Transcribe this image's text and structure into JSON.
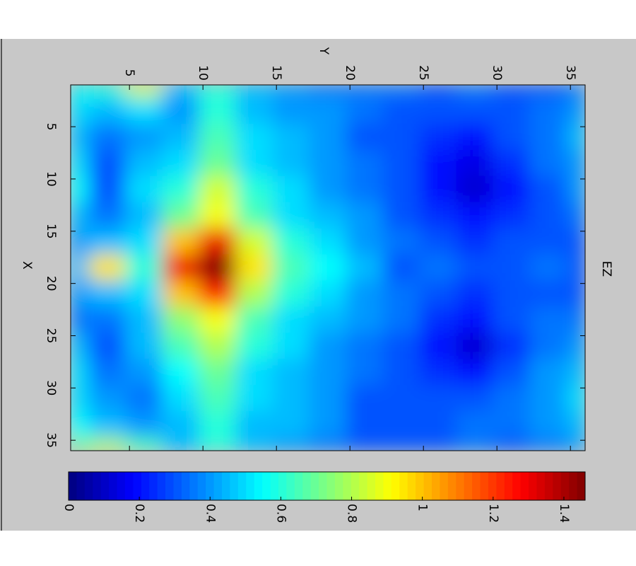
{
  "chart_data": {
    "type": "heatmap",
    "title": "EZ",
    "xlabel": "X",
    "ylabel": "Y",
    "x": [
      1,
      3.5,
      6,
      8.5,
      11,
      13.5,
      16,
      18.5,
      21,
      23.5,
      26,
      28.5,
      31,
      33.5,
      36
    ],
    "y": [
      1,
      3.5,
      6,
      8.5,
      11,
      13.5,
      16,
      18.5,
      21,
      23.5,
      26,
      28.5,
      31,
      33.5,
      36
    ],
    "z": [
      [
        0.55,
        0.6,
        0.85,
        0.45,
        0.6,
        0.45,
        0.4,
        0.35,
        0.35,
        0.35,
        0.3,
        0.35,
        0.3,
        0.3,
        0.35
      ],
      [
        0.5,
        0.45,
        0.5,
        0.4,
        0.6,
        0.45,
        0.4,
        0.4,
        0.35,
        0.3,
        0.3,
        0.3,
        0.3,
        0.35,
        0.4
      ],
      [
        0.45,
        0.35,
        0.4,
        0.45,
        0.65,
        0.5,
        0.45,
        0.4,
        0.3,
        0.3,
        0.25,
        0.2,
        0.3,
        0.35,
        0.45
      ],
      [
        0.5,
        0.3,
        0.45,
        0.5,
        0.7,
        0.5,
        0.45,
        0.4,
        0.35,
        0.3,
        0.2,
        0.15,
        0.25,
        0.35,
        0.4
      ],
      [
        0.55,
        0.3,
        0.5,
        0.6,
        0.85,
        0.6,
        0.5,
        0.4,
        0.35,
        0.3,
        0.2,
        0.12,
        0.2,
        0.3,
        0.4
      ],
      [
        0.45,
        0.35,
        0.45,
        0.7,
        0.9,
        0.65,
        0.5,
        0.45,
        0.4,
        0.3,
        0.25,
        0.2,
        0.25,
        0.3,
        0.35
      ],
      [
        0.4,
        0.45,
        0.5,
        1.0,
        1.3,
        0.85,
        0.6,
        0.5,
        0.4,
        0.35,
        0.3,
        0.25,
        0.3,
        0.3,
        0.3
      ],
      [
        0.45,
        0.95,
        0.6,
        1.3,
        1.46,
        0.95,
        0.65,
        0.55,
        0.45,
        0.3,
        0.35,
        0.3,
        0.3,
        0.35,
        0.3
      ],
      [
        0.4,
        0.45,
        0.5,
        1.0,
        1.25,
        0.8,
        0.6,
        0.5,
        0.4,
        0.35,
        0.3,
        0.25,
        0.3,
        0.3,
        0.3
      ],
      [
        0.35,
        0.35,
        0.45,
        0.75,
        0.9,
        0.65,
        0.5,
        0.45,
        0.4,
        0.35,
        0.25,
        0.2,
        0.3,
        0.35,
        0.35
      ],
      [
        0.45,
        0.3,
        0.45,
        0.65,
        0.8,
        0.6,
        0.5,
        0.4,
        0.35,
        0.3,
        0.2,
        0.12,
        0.25,
        0.35,
        0.4
      ],
      [
        0.5,
        0.35,
        0.4,
        0.55,
        0.7,
        0.5,
        0.45,
        0.4,
        0.35,
        0.3,
        0.25,
        0.2,
        0.3,
        0.4,
        0.45
      ],
      [
        0.5,
        0.4,
        0.35,
        0.5,
        0.65,
        0.5,
        0.45,
        0.4,
        0.3,
        0.3,
        0.3,
        0.3,
        0.35,
        0.4,
        0.5
      ],
      [
        0.55,
        0.45,
        0.4,
        0.45,
        0.6,
        0.45,
        0.45,
        0.4,
        0.3,
        0.3,
        0.3,
        0.35,
        0.35,
        0.4,
        0.45
      ],
      [
        0.7,
        0.8,
        0.65,
        0.45,
        0.6,
        0.45,
        0.4,
        0.35,
        0.3,
        0.3,
        0.3,
        0.35,
        0.3,
        0.35,
        0.4
      ]
    ],
    "xlim": [
      1,
      36
    ],
    "ylim": [
      1,
      36
    ],
    "xticks": [
      5,
      10,
      15,
      20,
      25,
      30,
      35
    ],
    "yticks": [
      5,
      10,
      15,
      20,
      25,
      30,
      35
    ],
    "clim": [
      0,
      1.46
    ],
    "cticks": [
      0,
      0.2,
      0.4,
      0.6,
      0.8,
      1,
      1.2,
      1.4
    ],
    "colormap": "jet",
    "colorbar": true
  }
}
